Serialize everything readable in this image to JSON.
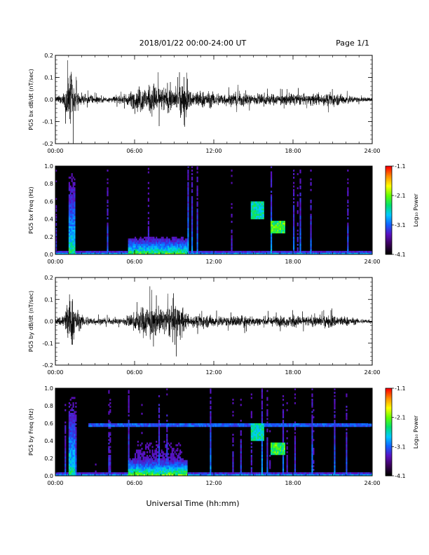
{
  "header": {
    "title": "2018/01/22  00:00-24:00 UT",
    "page": "Page 1/1"
  },
  "colors": {
    "trace": "#000000",
    "background": "#ffffff",
    "colormap": [
      "#000000",
      "#3a0058",
      "#5a10c0",
      "#1060ff",
      "#00c8ff",
      "#00e070",
      "#60ff00",
      "#ffff00",
      "#ff9000",
      "#ff0000"
    ]
  },
  "chart_data": [
    {
      "type": "line",
      "name": "bx-waveform",
      "ylabel": "PG5 bx dB/dt (nT/sec)",
      "xlabel": "",
      "xlim": [
        0,
        24
      ],
      "ylim": [
        -0.2,
        0.2
      ],
      "xticks": [
        "00:00",
        "06:00",
        "12:00",
        "18:00",
        "24:00"
      ],
      "yticks": [
        "-0.2",
        "-0.1",
        "0.0",
        "0.1",
        "0.2"
      ],
      "amplitude_envelope": {
        "x_hours": [
          0,
          0.5,
          0.8,
          1.0,
          1.2,
          1.4,
          1.6,
          2.0,
          3.0,
          4.0,
          5.0,
          5.5,
          6.0,
          6.5,
          7.0,
          7.5,
          8.0,
          8.5,
          9.0,
          9.5,
          9.8,
          10.0,
          11.0,
          12.0,
          13.0,
          14.0,
          15.0,
          16.0,
          17.0,
          18.0,
          19.0,
          20.0,
          21.0,
          22.0,
          23.0,
          24.0
        ],
        "y_amplitude": [
          0.02,
          0.04,
          0.1,
          0.22,
          0.22,
          0.15,
          0.08,
          0.04,
          0.03,
          0.025,
          0.03,
          0.05,
          0.08,
          0.12,
          0.1,
          0.14,
          0.1,
          0.11,
          0.09,
          0.13,
          0.21,
          0.08,
          0.07,
          0.06,
          0.05,
          0.06,
          0.05,
          0.05,
          0.04,
          0.05,
          0.04,
          0.05,
          0.05,
          0.04,
          0.02,
          0.02
        ]
      }
    },
    {
      "type": "heatmap",
      "name": "bx-spectrogram",
      "ylabel": "PG5 bx Freq (Hz)",
      "xlabel": "",
      "xlim": [
        0,
        24
      ],
      "ylim": [
        0,
        1.0
      ],
      "xticks": [
        "00:00",
        "06:00",
        "12:00",
        "18:00",
        "24:00"
      ],
      "yticks": [
        "0.0",
        "0.2",
        "0.4",
        "0.6",
        "0.8",
        "1.0"
      ],
      "colorbar": {
        "label": "Log₁₀ Power",
        "range": [
          -4.1,
          -1.1
        ],
        "ticks": [
          "-1.1",
          "-2.1",
          "-3.1",
          "-4.1"
        ]
      },
      "power_features": [
        {
          "t_start": 0,
          "t_end": 24,
          "f_max": 0.05,
          "level": 0.55
        },
        {
          "t_start": 1.0,
          "t_end": 1.5,
          "f_max": 0.95,
          "level": 0.6
        },
        {
          "t_start": 5.5,
          "t_end": 10.0,
          "f_max": 0.2,
          "level": 0.7
        },
        {
          "t_start": 14.8,
          "t_end": 15.8,
          "f_min": 0.4,
          "f_max": 0.6,
          "level": 0.55
        },
        {
          "t_start": 16.3,
          "t_end": 17.4,
          "f_min": 0.25,
          "f_max": 0.38,
          "level": 0.65
        }
      ]
    },
    {
      "type": "line",
      "name": "by-waveform",
      "ylabel": "PG5 by dB/dt (nT/sec)",
      "xlabel": "",
      "xlim": [
        0,
        24
      ],
      "ylim": [
        -0.2,
        0.2
      ],
      "xticks": [
        "00:00",
        "06:00",
        "12:00",
        "18:00",
        "24:00"
      ],
      "yticks": [
        "-0.2",
        "-0.1",
        "0.0",
        "0.1",
        "0.2"
      ],
      "amplitude_envelope": {
        "x_hours": [
          0,
          0.5,
          0.8,
          1.0,
          1.2,
          1.4,
          1.6,
          2.0,
          3.0,
          4.0,
          5.0,
          5.5,
          6.0,
          6.5,
          7.0,
          7.5,
          8.0,
          8.5,
          9.0,
          9.3,
          9.6,
          10.0,
          11.0,
          12.0,
          13.0,
          14.0,
          15.0,
          16.0,
          17.0,
          18.0,
          19.0,
          20.0,
          21.0,
          22.0,
          23.0,
          24.0
        ],
        "y_amplitude": [
          0.02,
          0.05,
          0.12,
          0.22,
          0.22,
          0.18,
          0.1,
          0.05,
          0.03,
          0.025,
          0.03,
          0.05,
          0.07,
          0.12,
          0.14,
          0.12,
          0.1,
          0.11,
          0.19,
          0.14,
          0.12,
          0.05,
          0.05,
          0.05,
          0.04,
          0.05,
          0.04,
          0.04,
          0.04,
          0.05,
          0.04,
          0.05,
          0.05,
          0.04,
          0.02,
          0.02
        ]
      }
    },
    {
      "type": "heatmap",
      "name": "by-spectrogram",
      "ylabel": "PG5 by Freq (Hz)",
      "xlabel": "Universal Time (hh:mm)",
      "xlim": [
        0,
        24
      ],
      "ylim": [
        0,
        1.0
      ],
      "xticks": [
        "00:00",
        "06:00",
        "12:00",
        "18:00",
        "24:00"
      ],
      "yticks": [
        "0.0",
        "0.2",
        "0.4",
        "0.6",
        "0.8",
        "1.0"
      ],
      "colorbar": {
        "label": "Log₁₀ Power",
        "range": [
          -4.1,
          -1.1
        ],
        "ticks": [
          "-1.1",
          "-2.1",
          "-3.1",
          "-4.1"
        ]
      },
      "power_features": [
        {
          "t_start": 0,
          "t_end": 24,
          "f_max": 0.05,
          "level": 0.55
        },
        {
          "t_start": 1.0,
          "t_end": 1.5,
          "f_max": 0.95,
          "level": 0.6
        },
        {
          "t_start": 5.5,
          "t_end": 10.0,
          "f_max": 0.2,
          "level": 0.75
        },
        {
          "t_start": 6.0,
          "t_end": 9.5,
          "f_max": 1.0,
          "level": 0.3
        },
        {
          "t_start": 2.5,
          "t_end": 24,
          "f_min": 0.56,
          "f_max": 0.6,
          "level": 0.35
        },
        {
          "t_start": 14.8,
          "t_end": 15.8,
          "f_min": 0.4,
          "f_max": 0.6,
          "level": 0.55
        },
        {
          "t_start": 16.3,
          "t_end": 17.4,
          "f_min": 0.25,
          "f_max": 0.38,
          "level": 0.65
        }
      ]
    }
  ]
}
